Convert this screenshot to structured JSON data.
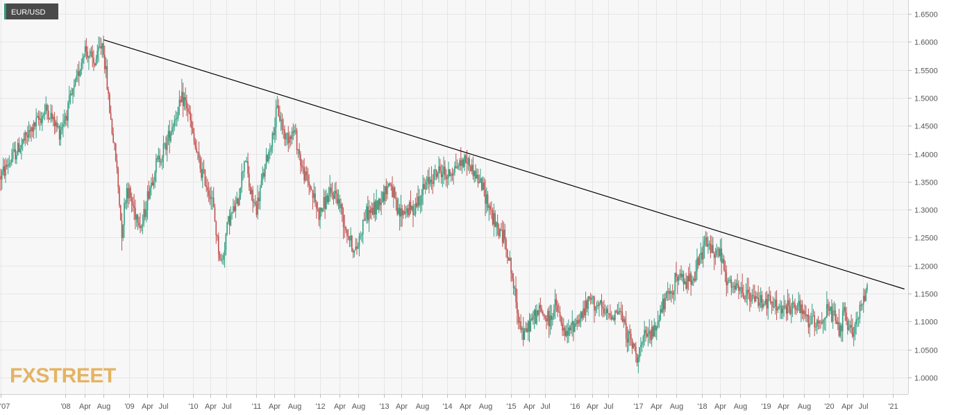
{
  "chart_data": {
    "type": "candlestick",
    "instrument": "EUR/USD",
    "watermark": "FXSTREET",
    "ylim": [
      0.97,
      1.675
    ],
    "y_ticks": [
      "1.0000",
      "1.0500",
      "1.1000",
      "1.1500",
      "1.2000",
      "1.2500",
      "1.3000",
      "1.3500",
      "1.4000",
      "1.4500",
      "1.5000",
      "1.5500",
      "1.6000",
      "1.6500"
    ],
    "x_ticks": [
      "'07",
      "'08",
      "Apr",
      "Aug",
      "'09",
      "Apr",
      "Jul",
      "'10",
      "Apr",
      "Jul",
      "'11",
      "Apr",
      "Aug",
      "'12",
      "Apr",
      "Aug",
      "'13",
      "Apr",
      "Aug",
      "'14",
      "Apr",
      "Aug",
      "'15",
      "Apr",
      "Jul",
      "'16",
      "Apr",
      "Jul",
      "'17",
      "Apr",
      "Aug",
      "'18",
      "Apr",
      "Aug",
      "'19",
      "Apr",
      "Aug",
      "'20",
      "Apr",
      "Jul",
      "'21"
    ],
    "x_tick_times": [
      2006.98,
      2008.0,
      2008.3,
      2008.6,
      2009.0,
      2009.28,
      2009.53,
      2010.0,
      2010.28,
      2010.53,
      2011.0,
      2011.28,
      2011.6,
      2012.0,
      2012.3,
      2012.6,
      2013.0,
      2013.28,
      2013.6,
      2014.0,
      2014.28,
      2014.6,
      2015.0,
      2015.28,
      2015.53,
      2016.0,
      2016.28,
      2016.53,
      2017.0,
      2017.28,
      2017.6,
      2018.0,
      2018.28,
      2018.6,
      2019.0,
      2019.28,
      2019.6,
      2020.0,
      2020.28,
      2020.53,
      2021.0
    ],
    "series": [
      {
        "t": 2006.98,
        "v": 1.36
      },
      {
        "t": 2007.2,
        "v": 1.4
      },
      {
        "t": 2007.45,
        "v": 1.44
      },
      {
        "t": 2007.7,
        "v": 1.48
      },
      {
        "t": 2007.9,
        "v": 1.44
      },
      {
        "t": 2008.0,
        "v": 1.47
      },
      {
        "t": 2008.15,
        "v": 1.52
      },
      {
        "t": 2008.3,
        "v": 1.59
      },
      {
        "t": 2008.45,
        "v": 1.56
      },
      {
        "t": 2008.58,
        "v": 1.6
      },
      {
        "t": 2008.72,
        "v": 1.45
      },
      {
        "t": 2008.8,
        "v": 1.38
      },
      {
        "t": 2008.88,
        "v": 1.26
      },
      {
        "t": 2008.96,
        "v": 1.34
      },
      {
        "t": 2009.08,
        "v": 1.3
      },
      {
        "t": 2009.2,
        "v": 1.27
      },
      {
        "t": 2009.3,
        "v": 1.33
      },
      {
        "t": 2009.42,
        "v": 1.38
      },
      {
        "t": 2009.55,
        "v": 1.41
      },
      {
        "t": 2009.7,
        "v": 1.46
      },
      {
        "t": 2009.85,
        "v": 1.5
      },
      {
        "t": 2009.92,
        "v": 1.48
      },
      {
        "t": 2010.0,
        "v": 1.43
      },
      {
        "t": 2010.1,
        "v": 1.38
      },
      {
        "t": 2010.2,
        "v": 1.35
      },
      {
        "t": 2010.3,
        "v": 1.32
      },
      {
        "t": 2010.4,
        "v": 1.23
      },
      {
        "t": 2010.45,
        "v": 1.2
      },
      {
        "t": 2010.55,
        "v": 1.28
      },
      {
        "t": 2010.7,
        "v": 1.31
      },
      {
        "t": 2010.82,
        "v": 1.4
      },
      {
        "t": 2010.9,
        "v": 1.33
      },
      {
        "t": 2011.0,
        "v": 1.3
      },
      {
        "t": 2011.1,
        "v": 1.36
      },
      {
        "t": 2011.25,
        "v": 1.43
      },
      {
        "t": 2011.33,
        "v": 1.48
      },
      {
        "t": 2011.45,
        "v": 1.43
      },
      {
        "t": 2011.6,
        "v": 1.44
      },
      {
        "t": 2011.72,
        "v": 1.37
      },
      {
        "t": 2011.85,
        "v": 1.34
      },
      {
        "t": 2011.98,
        "v": 1.29
      },
      {
        "t": 2012.1,
        "v": 1.32
      },
      {
        "t": 2012.25,
        "v": 1.33
      },
      {
        "t": 2012.4,
        "v": 1.27
      },
      {
        "t": 2012.55,
        "v": 1.22
      },
      {
        "t": 2012.7,
        "v": 1.29
      },
      {
        "t": 2012.85,
        "v": 1.3
      },
      {
        "t": 2013.0,
        "v": 1.33
      },
      {
        "t": 2013.1,
        "v": 1.35
      },
      {
        "t": 2013.22,
        "v": 1.29
      },
      {
        "t": 2013.35,
        "v": 1.3
      },
      {
        "t": 2013.45,
        "v": 1.3
      },
      {
        "t": 2013.6,
        "v": 1.33
      },
      {
        "t": 2013.75,
        "v": 1.36
      },
      {
        "t": 2013.9,
        "v": 1.37
      },
      {
        "t": 2014.0,
        "v": 1.36
      },
      {
        "t": 2014.15,
        "v": 1.38
      },
      {
        "t": 2014.3,
        "v": 1.39
      },
      {
        "t": 2014.45,
        "v": 1.36
      },
      {
        "t": 2014.55,
        "v": 1.34
      },
      {
        "t": 2014.65,
        "v": 1.31
      },
      {
        "t": 2014.75,
        "v": 1.27
      },
      {
        "t": 2014.9,
        "v": 1.25
      },
      {
        "t": 2015.0,
        "v": 1.19
      },
      {
        "t": 2015.08,
        "v": 1.13
      },
      {
        "t": 2015.2,
        "v": 1.07
      },
      {
        "t": 2015.3,
        "v": 1.1
      },
      {
        "t": 2015.45,
        "v": 1.12
      },
      {
        "t": 2015.6,
        "v": 1.1
      },
      {
        "t": 2015.7,
        "v": 1.13
      },
      {
        "t": 2015.85,
        "v": 1.07
      },
      {
        "t": 2015.95,
        "v": 1.09
      },
      {
        "t": 2016.1,
        "v": 1.11
      },
      {
        "t": 2016.25,
        "v": 1.14
      },
      {
        "t": 2016.35,
        "v": 1.13
      },
      {
        "t": 2016.5,
        "v": 1.11
      },
      {
        "t": 2016.7,
        "v": 1.12
      },
      {
        "t": 2016.85,
        "v": 1.07
      },
      {
        "t": 2016.98,
        "v": 1.04
      },
      {
        "t": 2017.1,
        "v": 1.07
      },
      {
        "t": 2017.25,
        "v": 1.08
      },
      {
        "t": 2017.35,
        "v": 1.12
      },
      {
        "t": 2017.5,
        "v": 1.15
      },
      {
        "t": 2017.6,
        "v": 1.18
      },
      {
        "t": 2017.75,
        "v": 1.17
      },
      {
        "t": 2017.9,
        "v": 1.19
      },
      {
        "t": 2018.05,
        "v": 1.24
      },
      {
        "t": 2018.15,
        "v": 1.23
      },
      {
        "t": 2018.3,
        "v": 1.22
      },
      {
        "t": 2018.38,
        "v": 1.17
      },
      {
        "t": 2018.5,
        "v": 1.16
      },
      {
        "t": 2018.65,
        "v": 1.15
      },
      {
        "t": 2018.8,
        "v": 1.14
      },
      {
        "t": 2018.95,
        "v": 1.14
      },
      {
        "t": 2019.1,
        "v": 1.13
      },
      {
        "t": 2019.3,
        "v": 1.12
      },
      {
        "t": 2019.45,
        "v": 1.13
      },
      {
        "t": 2019.6,
        "v": 1.11
      },
      {
        "t": 2019.72,
        "v": 1.1
      },
      {
        "t": 2019.85,
        "v": 1.1
      },
      {
        "t": 2019.98,
        "v": 1.12
      },
      {
        "t": 2020.1,
        "v": 1.1
      },
      {
        "t": 2020.18,
        "v": 1.08
      },
      {
        "t": 2020.22,
        "v": 1.12
      },
      {
        "t": 2020.3,
        "v": 1.08
      },
      {
        "t": 2020.4,
        "v": 1.09
      },
      {
        "t": 2020.48,
        "v": 1.12
      },
      {
        "t": 2020.55,
        "v": 1.14
      },
      {
        "t": 2020.6,
        "v": 1.17
      }
    ],
    "trendline": {
      "from": {
        "t": 2008.6,
        "v": 1.6038
      },
      "to": {
        "t": 2021.18,
        "v": 1.158
      }
    },
    "colors": {
      "up": "#2f9e7e",
      "down": "#c0504d",
      "trendline": "#000000",
      "grid": "#e6e6e6",
      "plot_bg": "#f7f7f8",
      "axis_text": "#555555",
      "badge_bg": "#4a4a4a",
      "badge_accent": "#2e9c7a",
      "watermark": "#e1a94a",
      "watermark_fx": "#9aa2ad"
    }
  }
}
